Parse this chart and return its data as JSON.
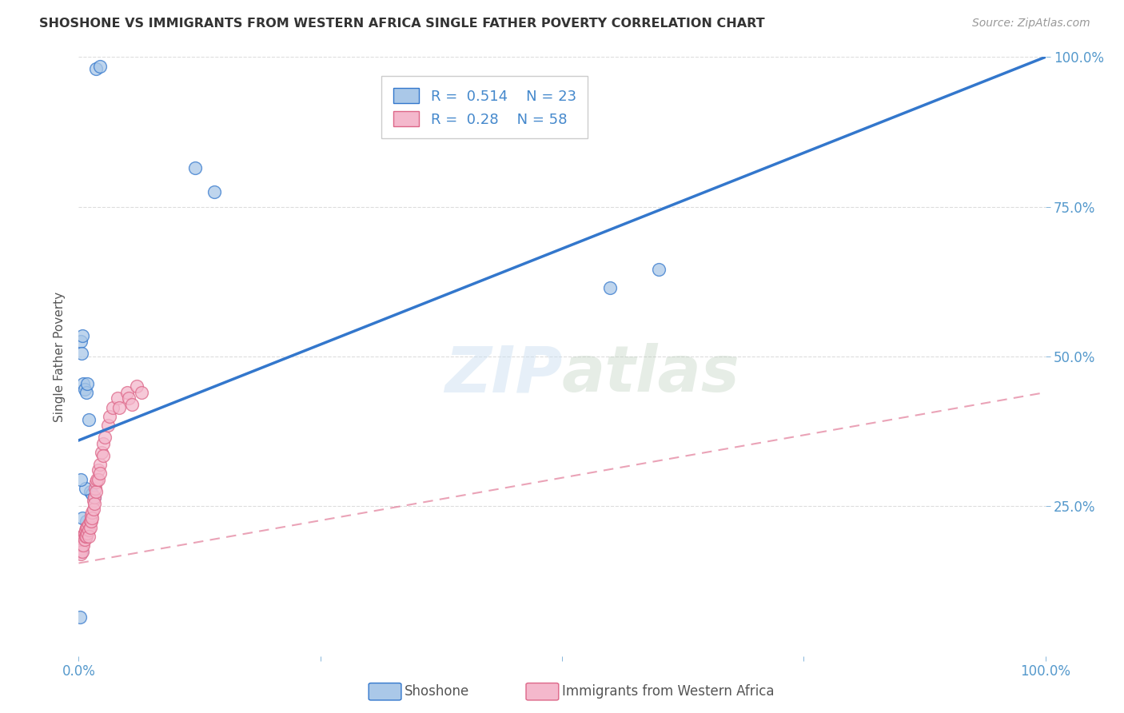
{
  "title": "SHOSHONE VS IMMIGRANTS FROM WESTERN AFRICA SINGLE FATHER POVERTY CORRELATION CHART",
  "source": "Source: ZipAtlas.com",
  "ylabel": "Single Father Poverty",
  "watermark": "ZIPatlas",
  "xlim": [
    0,
    1.0
  ],
  "ylim": [
    0,
    1.0
  ],
  "background_color": "#ffffff",
  "grid_color": "#dddddd",
  "series1_color": "#aac8e8",
  "series2_color": "#f4b8cc",
  "line1_color": "#3377cc",
  "line2_color": "#dd6688",
  "line1_dash_color": "#bbbbdd",
  "R1": 0.514,
  "N1": 23,
  "R2": 0.28,
  "N2": 58,
  "line1_x0": 0.0,
  "line1_y0": 0.36,
  "line1_x1": 1.0,
  "line1_y1": 1.0,
  "line2_x0": 0.0,
  "line2_y0": 0.155,
  "line2_x1": 1.0,
  "line2_y1": 0.44,
  "shoshone_x": [
    0.018,
    0.022,
    0.002,
    0.003,
    0.004,
    0.005,
    0.006,
    0.008,
    0.009,
    0.01,
    0.012,
    0.014,
    0.016,
    0.007,
    0.003,
    0.001,
    0.008,
    0.002,
    0.004,
    0.12,
    0.14,
    0.55,
    0.6
  ],
  "shoshone_y": [
    0.98,
    0.985,
    0.525,
    0.505,
    0.535,
    0.455,
    0.445,
    0.44,
    0.455,
    0.395,
    0.275,
    0.27,
    0.265,
    0.28,
    0.175,
    0.065,
    0.225,
    0.295,
    0.23,
    0.815,
    0.775,
    0.615,
    0.645
  ],
  "immigrants_x": [
    0.001,
    0.001,
    0.001,
    0.002,
    0.002,
    0.002,
    0.003,
    0.003,
    0.003,
    0.004,
    0.004,
    0.004,
    0.005,
    0.005,
    0.005,
    0.006,
    0.006,
    0.007,
    0.007,
    0.008,
    0.008,
    0.009,
    0.009,
    0.01,
    0.01,
    0.01,
    0.012,
    0.012,
    0.013,
    0.013,
    0.014,
    0.014,
    0.015,
    0.015,
    0.016,
    0.016,
    0.017,
    0.018,
    0.018,
    0.019,
    0.02,
    0.02,
    0.022,
    0.022,
    0.024,
    0.025,
    0.025,
    0.027,
    0.03,
    0.032,
    0.035,
    0.04,
    0.042,
    0.05,
    0.052,
    0.055,
    0.06,
    0.065
  ],
  "immigrants_y": [
    0.195,
    0.185,
    0.175,
    0.19,
    0.18,
    0.17,
    0.2,
    0.195,
    0.185,
    0.195,
    0.185,
    0.175,
    0.2,
    0.195,
    0.185,
    0.205,
    0.195,
    0.21,
    0.2,
    0.215,
    0.2,
    0.215,
    0.205,
    0.22,
    0.21,
    0.2,
    0.225,
    0.215,
    0.235,
    0.225,
    0.24,
    0.23,
    0.26,
    0.245,
    0.265,
    0.255,
    0.28,
    0.29,
    0.275,
    0.295,
    0.31,
    0.295,
    0.32,
    0.305,
    0.34,
    0.355,
    0.335,
    0.365,
    0.385,
    0.4,
    0.415,
    0.43,
    0.415,
    0.44,
    0.43,
    0.42,
    0.45,
    0.44
  ]
}
